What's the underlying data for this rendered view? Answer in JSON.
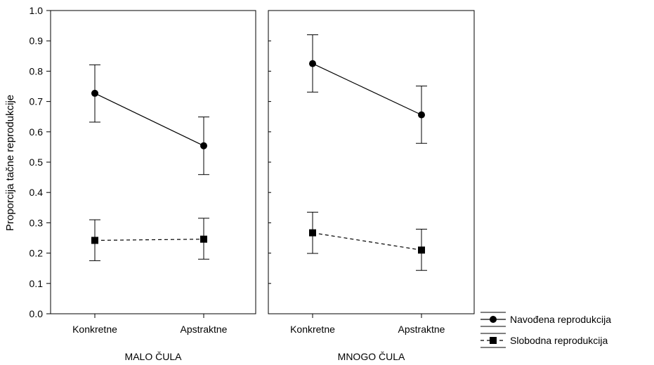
{
  "chart_data": {
    "type": "line",
    "ylabel": "Proporcija tačne reprodukcije",
    "ylim": [
      0.0,
      1.0
    ],
    "yticks": [
      "0.0",
      "0.1",
      "0.2",
      "0.3",
      "0.4",
      "0.5",
      "0.6",
      "0.7",
      "0.8",
      "0.9",
      "1.0"
    ],
    "grid": false,
    "legend_position": "bottom-right",
    "categories": [
      "Konkretne",
      "Apstraktne"
    ],
    "panels": [
      {
        "label": "MALO ČULA",
        "series": [
          {
            "name": "Navođena reprodukcija",
            "values": [
              0.727,
              0.554
            ],
            "err_low": [
              0.632,
              0.459
            ],
            "err_high": [
              0.821,
              0.649
            ]
          },
          {
            "name": "Slobodna reprodukcija",
            "values": [
              0.242,
              0.246
            ],
            "err_low": [
              0.175,
              0.18
            ],
            "err_high": [
              0.31,
              0.315
            ]
          }
        ]
      },
      {
        "label": "MNOGO ČULA",
        "series": [
          {
            "name": "Navođena reprodukcija",
            "values": [
              0.825,
              0.656
            ],
            "err_low": [
              0.731,
              0.562
            ],
            "err_high": [
              0.92,
              0.751
            ]
          },
          {
            "name": "Slobodna reprodukcija",
            "values": [
              0.267,
              0.21
            ],
            "err_low": [
              0.199,
              0.143
            ],
            "err_high": [
              0.335,
              0.279
            ]
          }
        ]
      }
    ],
    "series_styles": [
      {
        "marker": "circle",
        "line": "solid",
        "color": "#000000"
      },
      {
        "marker": "square",
        "line": "dashed",
        "color": "#000000"
      }
    ]
  }
}
